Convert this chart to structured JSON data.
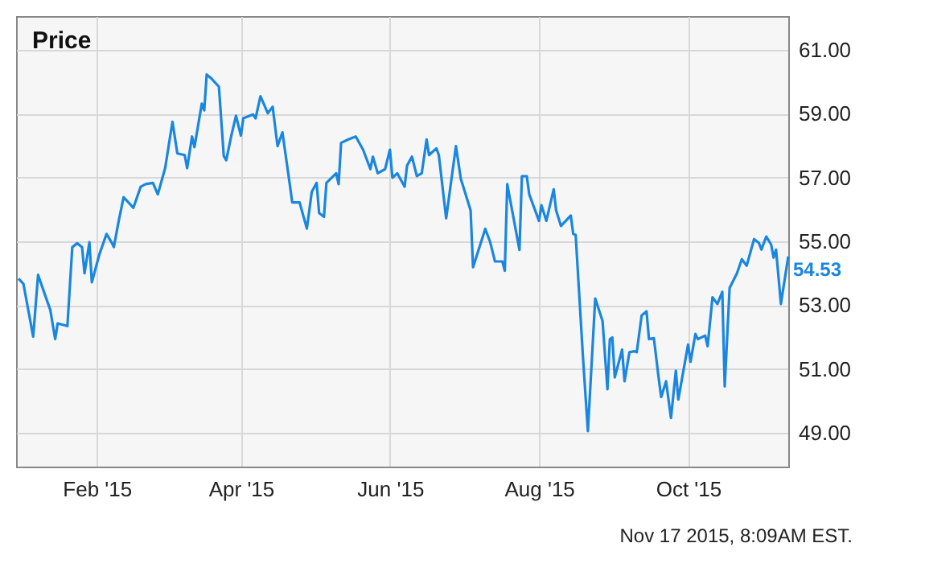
{
  "chart_data": {
    "type": "line",
    "title": "Price",
    "x": [
      "2014-12-31",
      "2015-01-02",
      "2015-01-06",
      "2015-01-08",
      "2015-01-13",
      "2015-01-15",
      "2015-01-16",
      "2015-01-20",
      "2015-01-22",
      "2015-01-24",
      "2015-01-26",
      "2015-01-27",
      "2015-01-29",
      "2015-01-30",
      "2015-02-02",
      "2015-02-05",
      "2015-02-07",
      "2015-02-08",
      "2015-02-10",
      "2015-02-12",
      "2015-02-16",
      "2015-02-19",
      "2015-02-21",
      "2015-02-24",
      "2015-02-26",
      "2015-03-01",
      "2015-03-04",
      "2015-03-06",
      "2015-03-09",
      "2015-03-10",
      "2015-03-12",
      "2015-03-13",
      "2015-03-16",
      "2015-03-17",
      "2015-03-18",
      "2015-03-20",
      "2015-03-23",
      "2015-03-25",
      "2015-03-26",
      "2015-03-28",
      "2015-03-30",
      "2015-04-01",
      "2015-04-02",
      "2015-04-06",
      "2015-04-07",
      "2015-04-09",
      "2015-04-12",
      "2015-04-14",
      "2015-04-16",
      "2015-04-18",
      "2015-04-21",
      "2015-04-22",
      "2015-04-25",
      "2015-04-28",
      "2015-04-30",
      "2015-05-02",
      "2015-05-03",
      "2015-05-05",
      "2015-05-06",
      "2015-05-10",
      "2015-05-11",
      "2015-05-12",
      "2015-05-15",
      "2015-05-18",
      "2015-05-21",
      "2015-05-24",
      "2015-05-25",
      "2015-05-27",
      "2015-05-30",
      "2015-06-01",
      "2015-06-02",
      "2015-06-04",
      "2015-06-07",
      "2015-06-08",
      "2015-06-10",
      "2015-06-12",
      "2015-06-14",
      "2015-06-16",
      "2015-06-17",
      "2015-06-20",
      "2015-06-21",
      "2015-06-24",
      "2015-06-28",
      "2015-06-30",
      "2015-07-04",
      "2015-07-05",
      "2015-07-10",
      "2015-07-12",
      "2015-07-14",
      "2015-07-17",
      "2015-07-18",
      "2015-07-19",
      "2015-07-24",
      "2015-07-25",
      "2015-07-27",
      "2015-07-28",
      "2015-08-01",
      "2015-08-02",
      "2015-08-04",
      "2015-08-07",
      "2015-08-08",
      "2015-08-10",
      "2015-08-14",
      "2015-08-15",
      "2015-08-16",
      "2015-08-19",
      "2015-08-21",
      "2015-08-24",
      "2015-08-27",
      "2015-08-29",
      "2015-08-30",
      "2015-08-31",
      "2015-09-01",
      "2015-09-04",
      "2015-09-05",
      "2015-09-07",
      "2015-09-09",
      "2015-09-10",
      "2015-09-12",
      "2015-09-14",
      "2015-09-15",
      "2015-09-17",
      "2015-09-19",
      "2015-09-20",
      "2015-09-22",
      "2015-09-24",
      "2015-09-26",
      "2015-09-27",
      "2015-10-01",
      "2015-10-02",
      "2015-10-04",
      "2015-10-05",
      "2015-10-08",
      "2015-10-09",
      "2015-10-11",
      "2015-10-13",
      "2015-10-15",
      "2015-10-16",
      "2015-10-18",
      "2015-10-21",
      "2015-10-23",
      "2015-10-25",
      "2015-10-28",
      "2015-10-30",
      "2015-10-31",
      "2015-11-02",
      "2015-11-04",
      "2015-11-05",
      "2015-11-06",
      "2015-11-08",
      "2015-11-11"
    ],
    "series": [
      {
        "color": "#1a86e0",
        "values": [
          53.83,
          53.67,
          52.02,
          53.95,
          52.85,
          51.94,
          52.43,
          52.35,
          54.82,
          54.94,
          54.82,
          54.0,
          54.97,
          53.72,
          54.57,
          55.23,
          54.98,
          54.82,
          55.64,
          56.38,
          56.05,
          56.71,
          56.79,
          56.83,
          56.47,
          57.29,
          58.74,
          57.75,
          57.7,
          57.29,
          58.28,
          57.95,
          59.31,
          59.1,
          60.22,
          60.09,
          59.84,
          57.67,
          57.54,
          58.28,
          58.93,
          58.31,
          58.85,
          58.97,
          58.85,
          59.54,
          59.01,
          59.21,
          57.98,
          58.41,
          56.79,
          56.22,
          56.22,
          55.4,
          56.55,
          56.83,
          55.89,
          55.77,
          56.83,
          57.13,
          56.79,
          58.08,
          58.19,
          58.28,
          57.87,
          57.26,
          57.65,
          57.13,
          57.26,
          57.87,
          56.99,
          57.13,
          56.71,
          57.37,
          57.65,
          57.04,
          57.13,
          58.19,
          57.7,
          57.91,
          57.7,
          55.72,
          57.98,
          56.96,
          55.97,
          54.19,
          55.39,
          54.98,
          54.37,
          54.37,
          54.08,
          56.79,
          54.73,
          57.04,
          57.04,
          56.47,
          55.64,
          56.13,
          55.64,
          56.63,
          55.97,
          55.48,
          55.81,
          55.23,
          55.2,
          51.36,
          49.06,
          53.21,
          52.51,
          50.37,
          51.94,
          51.99,
          50.74,
          51.61,
          50.62,
          51.53,
          51.56,
          51.53,
          52.68,
          52.81,
          51.94,
          51.97,
          50.7,
          50.13,
          50.62,
          49.47,
          50.95,
          50.05,
          51.77,
          51.23,
          52.1,
          51.94,
          52.05,
          51.72,
          53.25,
          53.04,
          53.42,
          50.46,
          53.54,
          54.0,
          54.44,
          54.24,
          55.07,
          54.95,
          54.74,
          55.15,
          54.9,
          54.49,
          54.74,
          53.04,
          54.53
        ]
      }
    ],
    "xlim": [
      "2014-12-30",
      "2015-11-11"
    ],
    "xticks": [
      {
        "value": "2015-02-01",
        "label": "Feb '15"
      },
      {
        "value": "2015-04-01",
        "label": "Apr '15"
      },
      {
        "value": "2015-06-01",
        "label": "Jun '15"
      },
      {
        "value": "2015-08-01",
        "label": "Aug '15"
      },
      {
        "value": "2015-10-01",
        "label": "Oct '15"
      }
    ],
    "ylim": [
      47.95,
      62.05
    ],
    "yticks": [
      {
        "value": 49,
        "label": "49.00"
      },
      {
        "value": 51,
        "label": "51.00"
      },
      {
        "value": 53,
        "label": "53.00"
      },
      {
        "value": 55,
        "label": "55.00"
      },
      {
        "value": 57,
        "label": "57.00"
      },
      {
        "value": 59,
        "label": "59.00"
      },
      {
        "value": 61,
        "label": "61.00"
      }
    ],
    "grid": true,
    "legend": false,
    "annotations": [
      {
        "text": "54.53",
        "x": "2015-11-11",
        "y": 54.53
      },
      "Nov 17 2015, 8:09AM EST."
    ]
  }
}
